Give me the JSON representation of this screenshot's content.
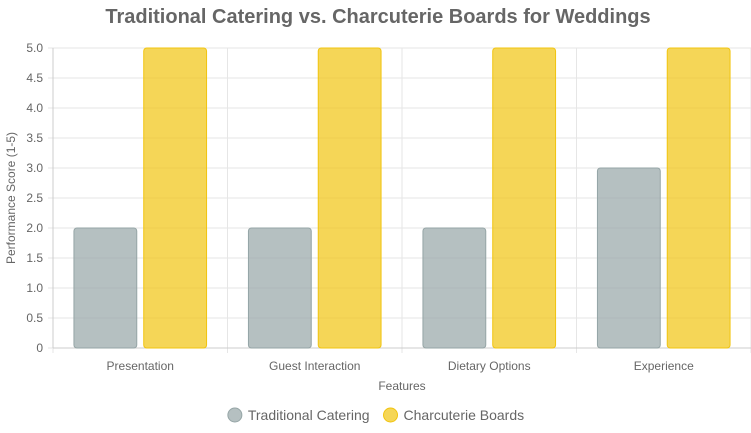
{
  "chart_data": {
    "type": "bar",
    "title": "Traditional Catering vs. Charcuterie Boards for Weddings",
    "xlabel": "Features",
    "ylabel": "Performance Score (1-5)",
    "categories": [
      "Presentation",
      "Guest Interaction",
      "Dietary Options",
      "Experience"
    ],
    "series": [
      {
        "name": "Traditional Catering",
        "values": [
          2,
          2,
          2,
          3
        ],
        "color": "#95a5a6"
      },
      {
        "name": "Charcuterie Boards",
        "values": [
          5,
          5,
          5,
          5
        ],
        "color": "#f1c40f"
      }
    ],
    "ylim": [
      0,
      5
    ],
    "yticks": [
      "0",
      "0.5",
      "1.0",
      "1.5",
      "2.0",
      "2.5",
      "3.0",
      "3.5",
      "4.0",
      "4.5",
      "5.0"
    ],
    "grid": true,
    "legend_position": "bottom"
  }
}
